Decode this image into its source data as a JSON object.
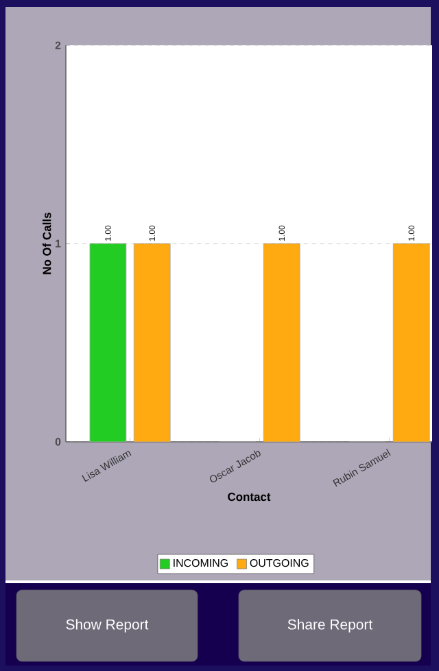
{
  "chart_data": {
    "type": "bar",
    "xlabel": "Contact",
    "ylabel": "No Of Calls",
    "categories": [
      "Lisa William",
      "Oscar Jacob",
      "Rubin Samuel"
    ],
    "series": [
      {
        "name": "INCOMING",
        "color": "#22cc22",
        "values": [
          1,
          0,
          0
        ],
        "value_labels": [
          "1.00",
          null,
          null
        ]
      },
      {
        "name": "OUTGOING",
        "color": "#ffaa11",
        "values": [
          1,
          1,
          1
        ],
        "value_labels": [
          "1.00",
          "1.00",
          "1.00"
        ]
      }
    ],
    "ylim": [
      0,
      2
    ],
    "yticks": [
      0,
      1,
      2
    ],
    "grid": "y",
    "legend": "bottom",
    "annotations": [
      "Show Report",
      "Share Report"
    ]
  }
}
